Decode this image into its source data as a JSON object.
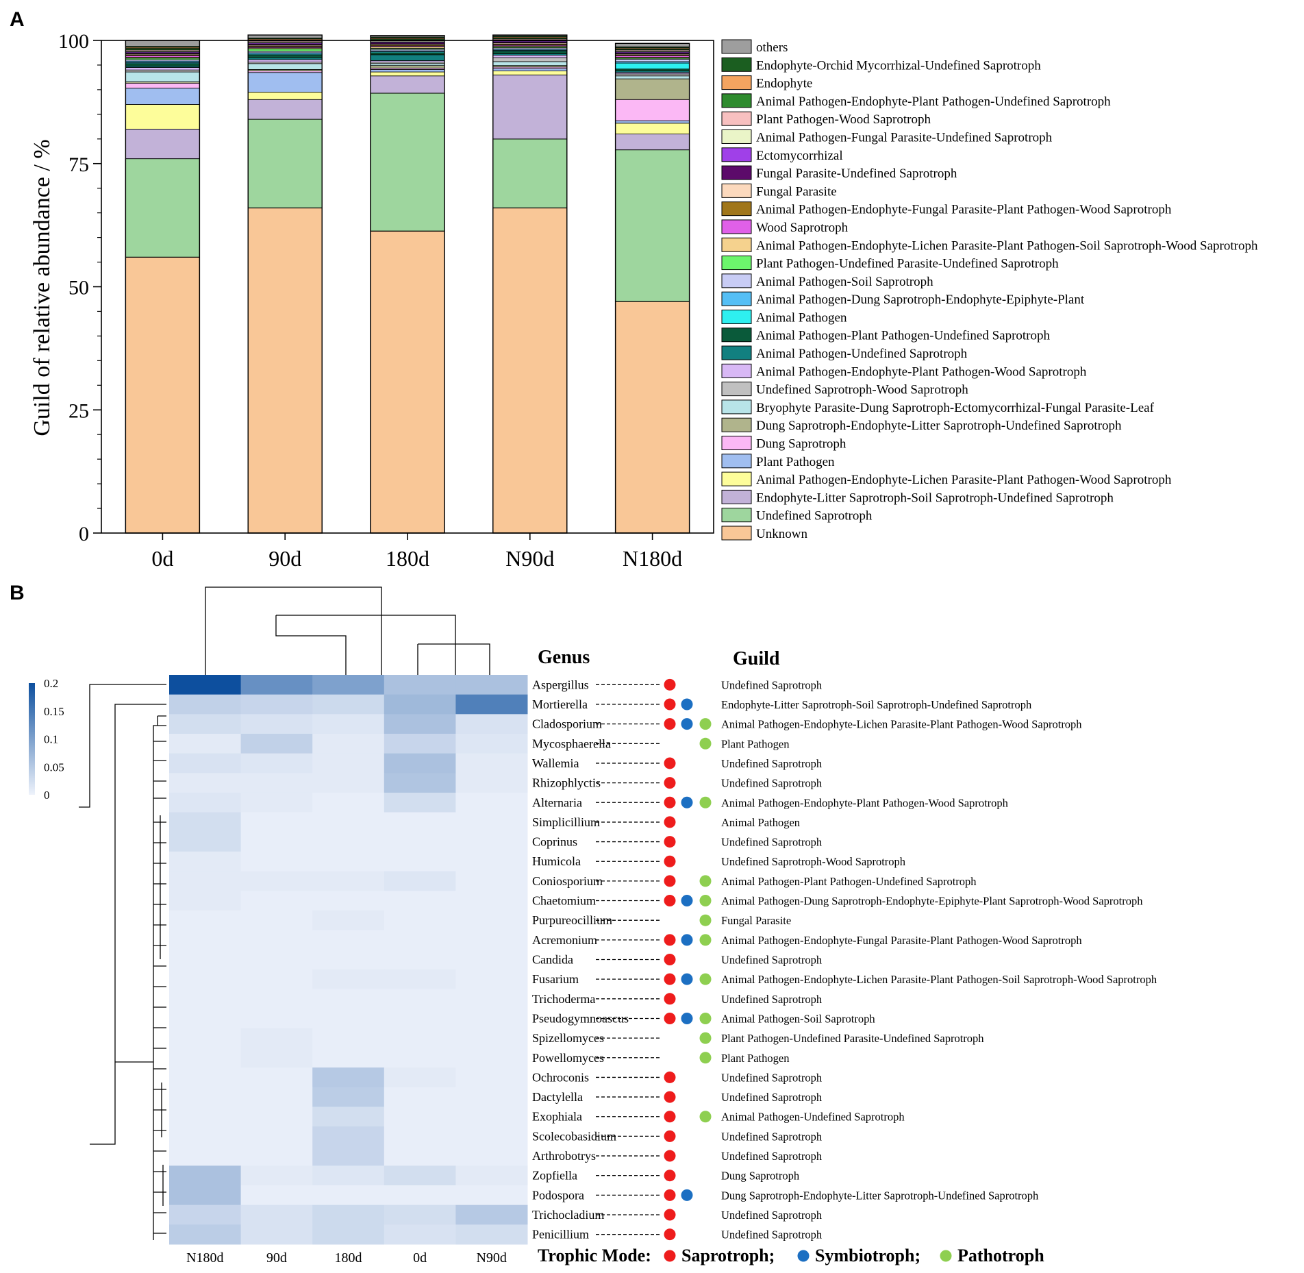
{
  "panel_labels": [
    "A",
    "B"
  ],
  "colors": {
    "others": "#9e9e9e",
    "Endophyte-Orchid Mycorrhizal-Undefined Saprotroph": "#1b5e20",
    "Endophyte": "#f4a460",
    "Animal Pathogen-Endophyte-Plant Pathogen-Undefined Saprotroph": "#2e8b2e",
    "Plant Pathogen-Wood Saprotroph": "#f8c0c0",
    "Animal Pathogen-Fungal Parasite-Undefined Saprotroph": "#eaf5c8",
    "Ectomycorrhizal": "#a040e8",
    "Fungal Parasite-Undefined Saprotroph": "#5c0a6a",
    "Fungal Parasite": "#fcd9bd",
    "Animal Pathogen-Endophyte-Fungal Parasite-Plant Pathogen-Wood Saprotroph": "#a0761a",
    "Wood Saprotroph": "#e060e8",
    "Animal Pathogen-Endophyte-Lichen Parasite-Plant Pathogen-Soil Saprotroph-Wood Saprotroph": "#f5d28e",
    "Plant Pathogen-Undefined Parasite-Undefined Saprotroph": "#6cf56c",
    "Animal Pathogen-Soil Saprotroph": "#c8ccf5",
    "Animal Pathogen-Dung Saprotroph-Endophyte-Epiphyte-Plant": "#55bff5",
    "Animal Pathogen": "#2ef0f0",
    "Animal Pathogen-Plant Pathogen-Undefined Saprotroph": "#0a5a3a",
    "Animal Pathogen-Undefined Saprotroph": "#128080",
    "Animal Pathogen-Endophyte-Plant Pathogen-Wood Saprotroph": "#d8b8f5",
    "Undefined Saprotroph-Wood Saprotroph": "#c0c0c0",
    "Bryophyte Parasite-Dung Saprotroph-Ectomycorrhizal-Fungal Parasite-Leaf": "#b8e4e8",
    "Dung Saprotroph-Endophyte-Litter Saprotroph-Undefined Saprotroph": "#b0b48c",
    "Dung Saprotroph": "#fbb8f5",
    "Plant Pathogen": "#a0bef0",
    "Animal Pathogen-Endophyte-Lichen Parasite-Plant Pathogen-Wood Saprotroph": "#fdfd9a",
    "Endophyte-Litter Saprotroph-Soil Saprotroph-Undefined Saprotroph": "#c2b2d8",
    "Undefined Saprotroph": "#9ed69e",
    "Unknown": "#f9c797",
    "saprotroph_dot": "#ee1c1c",
    "symbiotroph_dot": "#1c6fc2",
    "pathotroph_dot": "#8ecf50",
    "heat_low": "#eef2fb",
    "heat_high": "#0d4f9e"
  },
  "chart_data": [
    {
      "type": "bar",
      "stacked": true,
      "panel": "A",
      "title": "",
      "xlabel": "",
      "ylabel": "Guild of  relative abundance / %",
      "ylim": [
        0,
        100
      ],
      "yticks": [
        0,
        25,
        50,
        75,
        100
      ],
      "categories": [
        "0d",
        "90d",
        "180d",
        "N90d",
        "N180d"
      ],
      "legend_position": "right",
      "legend": [
        "others",
        "Endophyte-Orchid Mycorrhizal-Undefined Saprotroph",
        "Endophyte",
        "Animal Pathogen-Endophyte-Plant Pathogen-Undefined Saprotroph",
        "Plant Pathogen-Wood Saprotroph",
        "Animal Pathogen-Fungal Parasite-Undefined Saprotroph",
        "Ectomycorrhizal",
        "Fungal Parasite-Undefined Saprotroph",
        "Fungal Parasite",
        "Animal Pathogen-Endophyte-Fungal Parasite-Plant Pathogen-Wood Saprotroph",
        "Wood Saprotroph",
        "Animal Pathogen-Endophyte-Lichen Parasite-Plant Pathogen-Soil Saprotroph-Wood Saprotroph",
        "Plant Pathogen-Undefined Parasite-Undefined Saprotroph",
        "Animal Pathogen-Soil Saprotroph",
        "Animal Pathogen-Dung Saprotroph-Endophyte-Epiphyte-Plant",
        "Animal Pathogen",
        "Animal Pathogen-Plant Pathogen-Undefined Saprotroph",
        "Animal Pathogen-Undefined Saprotroph",
        "Animal Pathogen-Endophyte-Plant Pathogen-Wood Saprotroph",
        "Undefined Saprotroph-Wood Saprotroph",
        "Bryophyte Parasite-Dung Saprotroph-Ectomycorrhizal-Fungal Parasite-Leaf",
        "Dung Saprotroph-Endophyte-Litter Saprotroph-Undefined Saprotroph",
        "Dung Saprotroph",
        "Plant Pathogen",
        "Animal Pathogen-Endophyte-Lichen Parasite-Plant Pathogen-Wood Saprotroph",
        "Endophyte-Litter Saprotroph-Soil Saprotroph-Undefined Saprotroph",
        "Undefined Saprotroph",
        "Unknown"
      ],
      "series": [
        {
          "name": "Unknown",
          "values": [
            56,
            66,
            61.3,
            66,
            47
          ]
        },
        {
          "name": "Undefined Saprotroph",
          "values": [
            20,
            18,
            28,
            14,
            30.8
          ]
        },
        {
          "name": "Endophyte-Litter Saprotroph-Soil Saprotroph-Undefined Saprotroph",
          "values": [
            6,
            4,
            3.5,
            13,
            3.2
          ]
        },
        {
          "name": "Animal Pathogen-Endophyte-Lichen Parasite-Plant Pathogen-Wood Saprotroph",
          "values": [
            5,
            1.5,
            0.8,
            0.8,
            2.2
          ]
        },
        {
          "name": "Plant Pathogen",
          "values": [
            3.3,
            4,
            0.5,
            0.5,
            0.5
          ]
        },
        {
          "name": "Dung Saprotroph",
          "values": [
            1,
            0.3,
            0.3,
            0.3,
            4.3
          ]
        },
        {
          "name": "Dung Saprotroph-Endophyte-Litter Saprotroph-Undefined Saprotroph",
          "values": [
            0.3,
            0.3,
            0.5,
            0.3,
            4.2
          ]
        },
        {
          "name": "Bryophyte Parasite-Dung Saprotroph-Ectomycorrhizal-Fungal Parasite-Leaf",
          "values": [
            2,
            1.2,
            0.4,
            0.8,
            0.6
          ]
        },
        {
          "name": "Undefined Saprotroph-Wood Saprotroph",
          "values": [
            0.4,
            0.3,
            0.3,
            0.8,
            0.4
          ]
        },
        {
          "name": "Animal Pathogen-Endophyte-Plant Pathogen-Wood Saprotroph",
          "values": [
            0.5,
            0.5,
            0.3,
            0.5,
            0.3
          ]
        },
        {
          "name": "Animal Pathogen-Undefined Saprotroph",
          "values": [
            0.3,
            0.4,
            1.2,
            0.3,
            0.3
          ]
        },
        {
          "name": "Animal Pathogen-Plant Pathogen-Undefined Saprotroph",
          "values": [
            0.5,
            0.5,
            0.4,
            0.5,
            0.4
          ]
        },
        {
          "name": "Animal Pathogen",
          "values": [
            0.2,
            0.2,
            0.2,
            0.2,
            1.2
          ]
        },
        {
          "name": "Animal Pathogen-Dung Saprotroph-Endophyte-Epiphyte-Plant",
          "values": [
            0.3,
            0.3,
            0.2,
            0.2,
            0.3
          ]
        },
        {
          "name": "Animal Pathogen-Soil Saprotroph",
          "values": [
            0.3,
            0.3,
            0.3,
            0.3,
            0.5
          ]
        },
        {
          "name": "Plant Pathogen-Undefined Parasite-Undefined Saprotroph",
          "values": [
            0.3,
            0.5,
            0.2,
            0.2,
            0.2
          ]
        },
        {
          "name": "Animal Pathogen-Endophyte-Lichen Parasite-Plant Pathogen-Soil Saprotroph-Wood Saprotroph",
          "values": [
            0.2,
            0.2,
            0.3,
            0.2,
            0.2
          ]
        },
        {
          "name": "Wood Saprotroph",
          "values": [
            0.3,
            0.2,
            0.2,
            0.2,
            0.3
          ]
        },
        {
          "name": "Animal Pathogen-Endophyte-Fungal Parasite-Plant Pathogen-Wood Saprotroph",
          "values": [
            0.2,
            0.2,
            0.2,
            0.2,
            0.2
          ]
        },
        {
          "name": "Fungal Parasite",
          "values": [
            0.2,
            0.2,
            0.2,
            0.2,
            0.2
          ]
        },
        {
          "name": "Fungal Parasite-Undefined Saprotroph",
          "values": [
            0.2,
            0.2,
            0.2,
            0.2,
            0.2
          ]
        },
        {
          "name": "Ectomycorrhizal",
          "values": [
            0.2,
            0.2,
            0.2,
            0.2,
            0.2
          ]
        },
        {
          "name": "Animal Pathogen-Fungal Parasite-Undefined Saprotroph",
          "values": [
            0.2,
            0.2,
            0.2,
            0.2,
            0.2
          ]
        },
        {
          "name": "Plant Pathogen-Wood Saprotroph",
          "values": [
            0.2,
            0.2,
            0.2,
            0.2,
            0.2
          ]
        },
        {
          "name": "Animal Pathogen-Endophyte-Plant Pathogen-Undefined Saprotroph",
          "values": [
            0.3,
            0.2,
            0.2,
            0.2,
            0.2
          ]
        },
        {
          "name": "Endophyte",
          "values": [
            0.2,
            0.2,
            0.2,
            0.2,
            0.2
          ]
        },
        {
          "name": "Endophyte-Orchid Mycorrhizal-Undefined Saprotroph",
          "values": [
            0.2,
            0.2,
            0.2,
            0.2,
            0.2
          ]
        },
        {
          "name": "others",
          "values": [
            1.2,
            0.6,
            0.3,
            0.2,
            0.7
          ]
        }
      ]
    },
    {
      "type": "heatmap",
      "panel": "B",
      "columns": [
        "N180d",
        "90d",
        "180d",
        "0d",
        "N90d"
      ],
      "rows": [
        "Aspergillus",
        "Mortierella",
        "Cladosporium",
        "Mycosphaerella",
        "Wallemia",
        "Rhizophlyctis",
        "Alternaria",
        "Simplicillium",
        "Coprinus",
        "Humicola",
        "Coniosporium",
        "Chaetomium",
        "Purpureocillium",
        "Acremonium",
        "Candida",
        "Fusarium",
        "Trichoderma",
        "Pseudogymnoascus",
        "Spizellomyces",
        "Powellomyces",
        "Ochroconis",
        "Dactylella",
        "Exophiala",
        "Scolecobasidium",
        "Arthrobotrys",
        "Zopfiella",
        "Podospora",
        "Trichocladium",
        "Penicillium"
      ],
      "values": [
        [
          0.2,
          0.12,
          0.1,
          0.06,
          0.06
        ],
        [
          0.04,
          0.035,
          0.03,
          0.07,
          0.14
        ],
        [
          0.025,
          0.02,
          0.015,
          0.06,
          0.02
        ],
        [
          0.01,
          0.04,
          0.01,
          0.035,
          0.015
        ],
        [
          0.02,
          0.015,
          0.01,
          0.06,
          0.01
        ],
        [
          0.01,
          0.01,
          0.01,
          0.055,
          0.01
        ],
        [
          0.015,
          0.01,
          0.005,
          0.025,
          0.005
        ],
        [
          0.025,
          0.005,
          0.005,
          0.005,
          0.005
        ],
        [
          0.025,
          0.005,
          0.005,
          0.005,
          0.005
        ],
        [
          0.01,
          0.005,
          0.005,
          0.005,
          0.005
        ],
        [
          0.01,
          0.01,
          0.01,
          0.015,
          0.005
        ],
        [
          0.01,
          0.005,
          0.005,
          0.005,
          0.005
        ],
        [
          0.005,
          0.005,
          0.01,
          0.005,
          0.005
        ],
        [
          0.005,
          0.005,
          0.005,
          0.005,
          0.005
        ],
        [
          0.005,
          0.005,
          0.005,
          0.005,
          0.005
        ],
        [
          0.005,
          0.005,
          0.01,
          0.01,
          0.005
        ],
        [
          0.005,
          0.005,
          0.005,
          0.005,
          0.005
        ],
        [
          0.005,
          0.005,
          0.005,
          0.005,
          0.005
        ],
        [
          0.005,
          0.01,
          0.005,
          0.005,
          0.005
        ],
        [
          0.005,
          0.01,
          0.005,
          0.005,
          0.005
        ],
        [
          0.005,
          0.005,
          0.05,
          0.01,
          0.005
        ],
        [
          0.005,
          0.005,
          0.045,
          0.005,
          0.005
        ],
        [
          0.005,
          0.005,
          0.025,
          0.005,
          0.005
        ],
        [
          0.005,
          0.005,
          0.035,
          0.005,
          0.005
        ],
        [
          0.005,
          0.005,
          0.035,
          0.005,
          0.005
        ],
        [
          0.06,
          0.01,
          0.015,
          0.025,
          0.01
        ],
        [
          0.06,
          0.005,
          0.005,
          0.005,
          0.005
        ],
        [
          0.035,
          0.02,
          0.03,
          0.025,
          0.05
        ],
        [
          0.045,
          0.02,
          0.03,
          0.02,
          0.025
        ]
      ],
      "colorbar": {
        "min": 0,
        "max": 0.2,
        "ticks": [
          "0.2",
          "0.15",
          "0.1",
          "0.05",
          "0"
        ]
      },
      "genus_header": "Genus",
      "guild_header": "Guild",
      "guilds": [
        "Undefined Saprotroph",
        "Endophyte-Litter Saprotroph-Soil Saprotroph-Undefined Saprotroph",
        "Animal Pathogen-Endophyte-Lichen Parasite-Plant Pathogen-Wood Saprotroph",
        "Plant Pathogen",
        "Undefined Saprotroph",
        "Undefined Saprotroph",
        "Animal Pathogen-Endophyte-Plant Pathogen-Wood Saprotroph",
        "Animal Pathogen",
        "Undefined Saprotroph",
        "Undefined Saprotroph-Wood Saprotroph",
        "Animal Pathogen-Plant Pathogen-Undefined Saprotroph",
        "Animal Pathogen-Dung Saprotroph-Endophyte-Epiphyte-Plant Saprotroph-Wood Saprotroph",
        "Fungal Parasite",
        "Animal Pathogen-Endophyte-Fungal Parasite-Plant Pathogen-Wood Saprotroph",
        "Undefined Saprotroph",
        "Animal Pathogen-Endophyte-Lichen Parasite-Plant Pathogen-Soil Saprotroph-Wood Saprotroph",
        "Undefined Saprotroph",
        "Animal Pathogen-Soil Saprotroph",
        "Plant Pathogen-Undefined Parasite-Undefined Saprotroph",
        "Plant Pathogen",
        "Undefined Saprotroph",
        "Undefined Saprotroph",
        "Animal Pathogen-Undefined Saprotroph",
        "Undefined Saprotroph",
        "Undefined Saprotroph",
        "Dung Saprotroph",
        "Dung Saprotroph-Endophyte-Litter Saprotroph-Undefined Saprotroph",
        "Undefined Saprotroph",
        "Undefined Saprotroph"
      ],
      "trophic_modes": [
        [
          "S"
        ],
        [
          "S",
          "Y"
        ],
        [
          "S",
          "Y",
          "P"
        ],
        [
          "P"
        ],
        [
          "S"
        ],
        [
          "S"
        ],
        [
          "S",
          "Y",
          "P"
        ],
        [
          "S"
        ],
        [
          "S"
        ],
        [
          "S"
        ],
        [
          "S",
          "P"
        ],
        [
          "S",
          "Y",
          "P"
        ],
        [
          "P"
        ],
        [
          "S",
          "Y",
          "P"
        ],
        [
          "S"
        ],
        [
          "S",
          "Y",
          "P"
        ],
        [
          "S"
        ],
        [
          "S",
          "Y",
          "P"
        ],
        [
          "P"
        ],
        [
          "P"
        ],
        [
          "S"
        ],
        [
          "S"
        ],
        [
          "S",
          "P"
        ],
        [
          "S"
        ],
        [
          "S"
        ],
        [
          "S"
        ],
        [
          "S",
          "Y"
        ],
        [
          "S"
        ],
        [
          "S"
        ]
      ],
      "legend": {
        "title": "Trophic Mode:",
        "items": [
          {
            "code": "S",
            "label": "Saprotroph;"
          },
          {
            "code": "Y",
            "label": "Symbiotroph;"
          },
          {
            "code": "P",
            "label": "Pathotroph"
          }
        ]
      }
    }
  ]
}
